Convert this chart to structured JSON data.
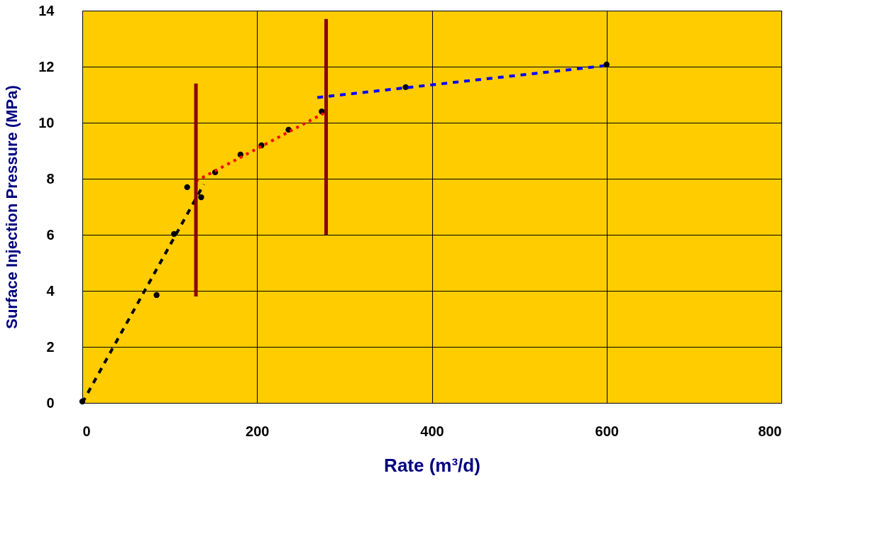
{
  "chart_data": {
    "type": "scatter",
    "xlabel": "Rate (m³/d)",
    "ylabel": "Surface Injection Pressure (MPa)",
    "xlim": [
      0,
      800
    ],
    "ylim": [
      0,
      14
    ],
    "xticks": [
      0,
      200,
      400,
      600,
      800
    ],
    "yticks": [
      0,
      2,
      4,
      6,
      8,
      10,
      12,
      14
    ],
    "grid": true,
    "series": [
      {
        "color": "#000000",
        "marker": "circle",
        "x": [
          0,
          85,
          105,
          120,
          136,
          152,
          181,
          205,
          236,
          274,
          370,
          600
        ],
        "values": [
          0.05,
          3.85,
          6.03,
          7.7,
          7.34,
          8.23,
          8.86,
          9.19,
          9.75,
          10.4,
          11.27,
          12.08
        ]
      },
      {
        "type": "line",
        "color": "#000000",
        "line_style": "dashed",
        "x": [
          0,
          139
        ],
        "values": [
          0,
          7.8
        ]
      },
      {
        "type": "line",
        "color": "#ff0000",
        "line_style": "dotted",
        "x": [
          130,
          276
        ],
        "values": [
          7.92,
          10.33
        ]
      },
      {
        "type": "line",
        "color": "#0000ff",
        "line_style": "dashed",
        "x": [
          269,
          597
        ],
        "values": [
          10.9,
          12.03
        ]
      },
      {
        "type": "line",
        "color": "#8b0000",
        "line_style": "solid",
        "x": [
          130,
          130
        ],
        "values": [
          3.8,
          11.4
        ]
      },
      {
        "type": "line",
        "color": "#8b0000",
        "line_style": "solid",
        "x": [
          279,
          279
        ],
        "values": [
          6.0,
          13.7
        ]
      }
    ]
  }
}
